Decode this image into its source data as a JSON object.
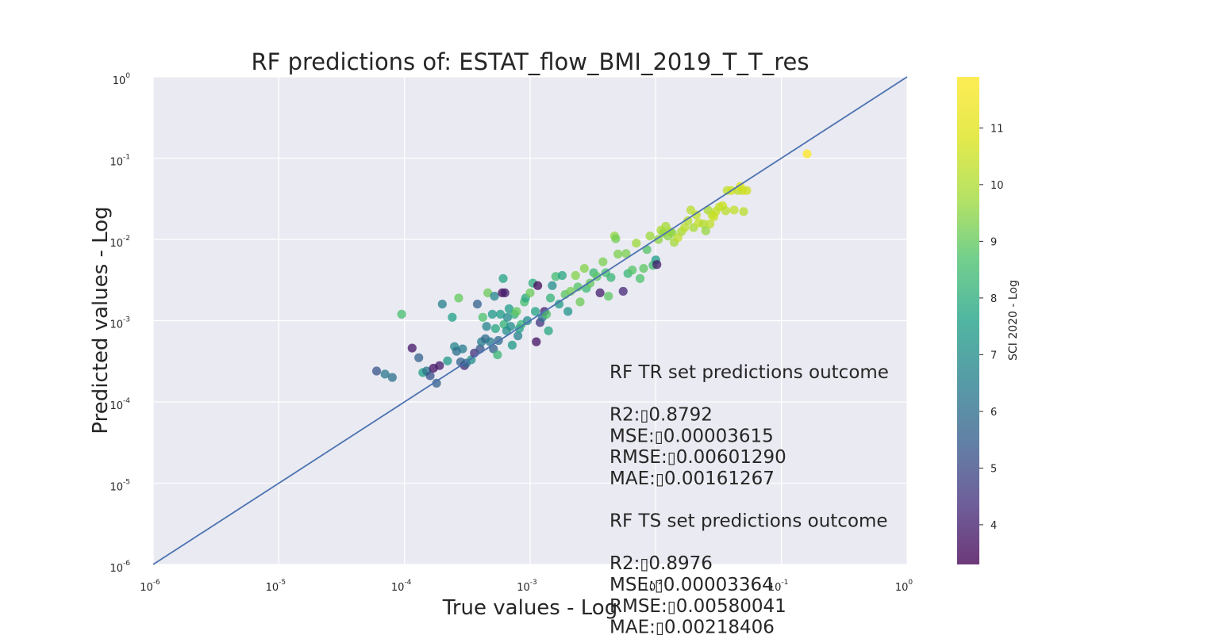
{
  "chart_data": {
    "type": "scatter",
    "title": "RF predictions of: ESTAT_flow_BMI_2019_T_T_res",
    "xlabel": "True values - Log",
    "ylabel": "Predicted values - Log",
    "xscale": "log",
    "yscale": "log",
    "xlim": [
      1e-06,
      1
    ],
    "ylim": [
      1e-06,
      1
    ],
    "x_tick_exponents": [
      "-6",
      "-5",
      "-4",
      "-3",
      "-2",
      "-1",
      "0"
    ],
    "y_tick_exponents": [
      "-6",
      "-5",
      "-4",
      "-3",
      "-2",
      "-1",
      "0"
    ],
    "tick_base": "10",
    "grid": true,
    "reference_line": "y = x",
    "colorbar": {
      "label": "SCI 2020 - Log",
      "colormap": "viridis",
      "range": [
        3.3,
        11.9
      ],
      "ticks": [
        "4",
        "5",
        "6",
        "7",
        "8",
        "9",
        "10",
        "11"
      ]
    },
    "annotation_lines": [
      "RF TR set predictions outcome",
      "",
      "R2:\t0.8792",
      "MSE:\t0.00003615",
      "RMSE:\t0.00601290",
      "MAE:\t0.00161267",
      "",
      "RF TS set predictions outcome",
      "",
      "R2:\t0.8976",
      "MSE:\t0.00003364",
      "RMSE:\t0.00580041",
      "MAE:\t0.00218406"
    ],
    "points": [
      {
        "x": 6e-05,
        "y": 0.00024,
        "c": 5.3
      },
      {
        "x": 7e-05,
        "y": 0.00022,
        "c": 6.3
      },
      {
        "x": 8e-05,
        "y": 0.0002,
        "c": 6.1
      },
      {
        "x": 9.5e-05,
        "y": 0.0012,
        "c": 8.6
      },
      {
        "x": 0.000115,
        "y": 0.00046,
        "c": 3.8
      },
      {
        "x": 0.00013,
        "y": 0.00035,
        "c": 5.6
      },
      {
        "x": 0.00014,
        "y": 0.00023,
        "c": 7.6
      },
      {
        "x": 0.00015,
        "y": 0.00024,
        "c": 6.2
      },
      {
        "x": 0.00016,
        "y": 0.00021,
        "c": 5.2
      },
      {
        "x": 0.00017,
        "y": 0.00026,
        "c": 3.7
      },
      {
        "x": 0.00018,
        "y": 0.00017,
        "c": 5.7
      },
      {
        "x": 0.00019,
        "y": 0.00028,
        "c": 3.9
      },
      {
        "x": 0.0002,
        "y": 0.0016,
        "c": 6.6
      },
      {
        "x": 0.00022,
        "y": 0.00032,
        "c": 7.3
      },
      {
        "x": 0.00024,
        "y": 0.0011,
        "c": 7.6
      },
      {
        "x": 0.00025,
        "y": 0.00048,
        "c": 6.8
      },
      {
        "x": 0.00026,
        "y": 0.00042,
        "c": 6.0
      },
      {
        "x": 0.00027,
        "y": 0.0019,
        "c": 9.0
      },
      {
        "x": 0.00028,
        "y": 0.00031,
        "c": 5.7
      },
      {
        "x": 0.00029,
        "y": 0.00045,
        "c": 6.4
      },
      {
        "x": 0.0003,
        "y": 0.00028,
        "c": 4.2
      },
      {
        "x": 0.00031,
        "y": 0.0003,
        "c": 5.9
      },
      {
        "x": 0.00034,
        "y": 0.00033,
        "c": 7.1
      },
      {
        "x": 0.00036,
        "y": 0.0004,
        "c": 4.4
      },
      {
        "x": 0.00038,
        "y": 0.0016,
        "c": 5.6
      },
      {
        "x": 0.0004,
        "y": 0.00045,
        "c": 5.3
      },
      {
        "x": 0.00041,
        "y": 0.00055,
        "c": 6.5
      },
      {
        "x": 0.00042,
        "y": 0.0011,
        "c": 8.7
      },
      {
        "x": 0.00044,
        "y": 0.0006,
        "c": 5.9
      },
      {
        "x": 0.00045,
        "y": 0.00085,
        "c": 6.7
      },
      {
        "x": 0.00046,
        "y": 0.0022,
        "c": 9.1
      },
      {
        "x": 0.00048,
        "y": 0.00055,
        "c": 6.4
      },
      {
        "x": 0.0005,
        "y": 0.0012,
        "c": 7.3
      },
      {
        "x": 0.00051,
        "y": 0.00045,
        "c": 5.6
      },
      {
        "x": 0.00052,
        "y": 0.002,
        "c": 6.8
      },
      {
        "x": 0.00053,
        "y": 0.0008,
        "c": 7.8
      },
      {
        "x": 0.00055,
        "y": 0.00038,
        "c": 8.3
      },
      {
        "x": 0.00056,
        "y": 0.00057,
        "c": 5.9
      },
      {
        "x": 0.00058,
        "y": 0.0012,
        "c": 7.5
      },
      {
        "x": 0.0006,
        "y": 0.0022,
        "c": 3.6
      },
      {
        "x": 0.00061,
        "y": 0.0033,
        "c": 7.7
      },
      {
        "x": 0.00062,
        "y": 0.0009,
        "c": 8.2
      },
      {
        "x": 0.00063,
        "y": 0.0022,
        "c": 3.9
      },
      {
        "x": 0.00065,
        "y": 0.00075,
        "c": 7.1
      },
      {
        "x": 0.00066,
        "y": 0.0011,
        "c": 6.9
      },
      {
        "x": 0.00068,
        "y": 0.0014,
        "c": 7.5
      },
      {
        "x": 0.0007,
        "y": 0.00085,
        "c": 7.0
      },
      {
        "x": 0.00072,
        "y": 0.0005,
        "c": 7.4
      },
      {
        "x": 0.00075,
        "y": 0.0012,
        "c": 8.1
      },
      {
        "x": 0.00078,
        "y": 0.0013,
        "c": 9.0
      },
      {
        "x": 0.0008,
        "y": 0.00065,
        "c": 6.6
      },
      {
        "x": 0.00082,
        "y": 0.0008,
        "c": 7.6
      },
      {
        "x": 0.00085,
        "y": 0.0009,
        "c": 8.3
      },
      {
        "x": 0.0009,
        "y": 0.0017,
        "c": 8.6
      },
      {
        "x": 0.00092,
        "y": 0.0019,
        "c": 7.9
      },
      {
        "x": 0.00095,
        "y": 0.001,
        "c": 6.9
      },
      {
        "x": 0.001,
        "y": 0.0022,
        "c": 9.1
      },
      {
        "x": 0.00105,
        "y": 0.0029,
        "c": 8.0
      },
      {
        "x": 0.0011,
        "y": 0.0013,
        "c": 7.7
      },
      {
        "x": 0.00112,
        "y": 0.00055,
        "c": 3.7
      },
      {
        "x": 0.00115,
        "y": 0.0027,
        "c": 3.5
      },
      {
        "x": 0.0012,
        "y": 0.00095,
        "c": 4.5
      },
      {
        "x": 0.00125,
        "y": 0.0011,
        "c": 6.1
      },
      {
        "x": 0.0013,
        "y": 0.0013,
        "c": 4.1
      },
      {
        "x": 0.00135,
        "y": 0.0012,
        "c": 8.7
      },
      {
        "x": 0.0014,
        "y": 0.00075,
        "c": 7.8
      },
      {
        "x": 0.00145,
        "y": 0.0019,
        "c": 8.2
      },
      {
        "x": 0.0015,
        "y": 0.0027,
        "c": 7.0
      },
      {
        "x": 0.0016,
        "y": 0.0035,
        "c": 8.5
      },
      {
        "x": 0.0017,
        "y": 0.0016,
        "c": 7.4
      },
      {
        "x": 0.0018,
        "y": 0.0036,
        "c": 7.8
      },
      {
        "x": 0.0019,
        "y": 0.0021,
        "c": 8.9
      },
      {
        "x": 0.002,
        "y": 0.0013,
        "c": 7.2
      },
      {
        "x": 0.0021,
        "y": 0.0023,
        "c": 9.2
      },
      {
        "x": 0.0023,
        "y": 0.0036,
        "c": 9.4
      },
      {
        "x": 0.0024,
        "y": 0.0026,
        "c": 8.8
      },
      {
        "x": 0.0025,
        "y": 0.0017,
        "c": 9.1
      },
      {
        "x": 0.0027,
        "y": 0.0044,
        "c": 9.4
      },
      {
        "x": 0.0028,
        "y": 0.0025,
        "c": 8.4
      },
      {
        "x": 0.003,
        "y": 0.0029,
        "c": 9.0
      },
      {
        "x": 0.0032,
        "y": 0.0039,
        "c": 8.4
      },
      {
        "x": 0.0034,
        "y": 0.0035,
        "c": 8.9
      },
      {
        "x": 0.0036,
        "y": 0.0022,
        "c": 4.0
      },
      {
        "x": 0.0038,
        "y": 0.0053,
        "c": 9.3
      },
      {
        "x": 0.004,
        "y": 0.0039,
        "c": 8.6
      },
      {
        "x": 0.0042,
        "y": 0.002,
        "c": 8.9
      },
      {
        "x": 0.0044,
        "y": 0.0034,
        "c": 8.3
      },
      {
        "x": 0.0047,
        "y": 0.011,
        "c": 9.6
      },
      {
        "x": 0.0048,
        "y": 0.0102,
        "c": 9.2
      },
      {
        "x": 0.005,
        "y": 0.0066,
        "c": 9.3
      },
      {
        "x": 0.0055,
        "y": 0.0023,
        "c": 4.2
      },
      {
        "x": 0.0058,
        "y": 0.0067,
        "c": 9.3
      },
      {
        "x": 0.006,
        "y": 0.0038,
        "c": 8.3
      },
      {
        "x": 0.0065,
        "y": 0.0042,
        "c": 8.8
      },
      {
        "x": 0.007,
        "y": 0.009,
        "c": 9.7
      },
      {
        "x": 0.0075,
        "y": 0.0033,
        "c": 8.7
      },
      {
        "x": 0.008,
        "y": 0.0044,
        "c": 8.9
      },
      {
        "x": 0.0085,
        "y": 0.0075,
        "c": 8.8
      },
      {
        "x": 0.009,
        "y": 0.011,
        "c": 9.7
      },
      {
        "x": 0.0095,
        "y": 0.0048,
        "c": 8.5
      },
      {
        "x": 0.01,
        "y": 0.0056,
        "c": 7.5
      },
      {
        "x": 0.0102,
        "y": 0.0049,
        "c": 3.9
      },
      {
        "x": 0.0105,
        "y": 0.01,
        "c": 9.5
      },
      {
        "x": 0.011,
        "y": 0.013,
        "c": 9.9
      },
      {
        "x": 0.0115,
        "y": 0.012,
        "c": 9.6
      },
      {
        "x": 0.012,
        "y": 0.0145,
        "c": 9.8
      },
      {
        "x": 0.0125,
        "y": 0.011,
        "c": 9.5
      },
      {
        "x": 0.013,
        "y": 0.0125,
        "c": 9.9
      },
      {
        "x": 0.0135,
        "y": 0.012,
        "c": 9.5
      },
      {
        "x": 0.014,
        "y": 0.0092,
        "c": 9.8
      },
      {
        "x": 0.015,
        "y": 0.0105,
        "c": 10.3
      },
      {
        "x": 0.016,
        "y": 0.0125,
        "c": 10.0
      },
      {
        "x": 0.017,
        "y": 0.014,
        "c": 10.2
      },
      {
        "x": 0.018,
        "y": 0.017,
        "c": 10.1
      },
      {
        "x": 0.019,
        "y": 0.023,
        "c": 10.2
      },
      {
        "x": 0.02,
        "y": 0.014,
        "c": 9.9
      },
      {
        "x": 0.021,
        "y": 0.02,
        "c": 10.3
      },
      {
        "x": 0.022,
        "y": 0.016,
        "c": 10.4
      },
      {
        "x": 0.024,
        "y": 0.0155,
        "c": 10.1
      },
      {
        "x": 0.025,
        "y": 0.0128,
        "c": 9.6
      },
      {
        "x": 0.026,
        "y": 0.023,
        "c": 10.0
      },
      {
        "x": 0.027,
        "y": 0.0155,
        "c": 10.3
      },
      {
        "x": 0.028,
        "y": 0.02,
        "c": 10.3
      },
      {
        "x": 0.029,
        "y": 0.019,
        "c": 10.5
      },
      {
        "x": 0.03,
        "y": 0.022,
        "c": 10.4
      },
      {
        "x": 0.032,
        "y": 0.025,
        "c": 10.3
      },
      {
        "x": 0.034,
        "y": 0.026,
        "c": 10.5
      },
      {
        "x": 0.036,
        "y": 0.0225,
        "c": 10.2
      },
      {
        "x": 0.037,
        "y": 0.04,
        "c": 10.3
      },
      {
        "x": 0.04,
        "y": 0.04,
        "c": 10.6
      },
      {
        "x": 0.042,
        "y": 0.023,
        "c": 10.3
      },
      {
        "x": 0.045,
        "y": 0.04,
        "c": 10.3
      },
      {
        "x": 0.047,
        "y": 0.045,
        "c": 10.8
      },
      {
        "x": 0.049,
        "y": 0.04,
        "c": 10.5
      },
      {
        "x": 0.05,
        "y": 0.022,
        "c": 10.2
      },
      {
        "x": 0.053,
        "y": 0.04,
        "c": 10.6
      },
      {
        "x": 0.16,
        "y": 0.113,
        "c": 11.9
      }
    ]
  }
}
